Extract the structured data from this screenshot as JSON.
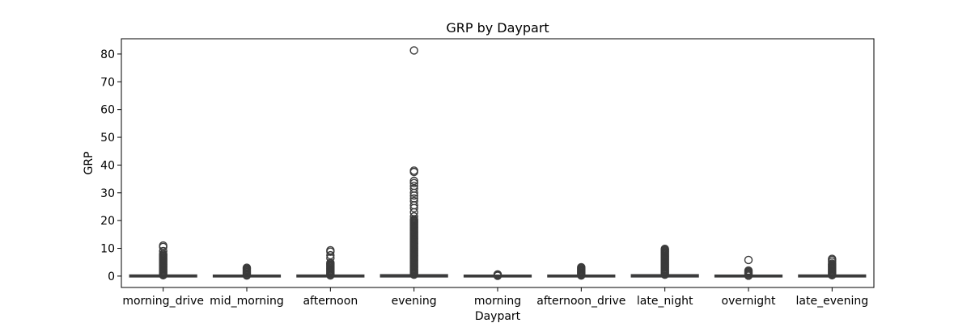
{
  "chart_data": {
    "type": "box",
    "title": "GRP by Daypart",
    "xlabel": "Daypart",
    "ylabel": "GRP",
    "ylim": [
      -4.1,
      85.5
    ],
    "yticks": [
      0,
      10,
      20,
      30,
      40,
      50,
      60,
      70,
      80
    ],
    "grid": false,
    "box_color": "#3b3b3b",
    "categories": [
      "morning_drive",
      "mid_morning",
      "afternoon",
      "evening",
      "morning",
      "afternoon_drive",
      "late_night",
      "overnight",
      "late_evening"
    ],
    "boxes": [
      {
        "category": "morning_drive",
        "whisker_low": 0.0,
        "q1": 0.0,
        "median": 0.05,
        "q3": 0.1,
        "whisker_high": 0.2,
        "outliers": {
          "dense_range": [
            0.3,
            8.0
          ],
          "discrete": [
            9.0,
            10.5,
            11.0
          ]
        }
      },
      {
        "category": "mid_morning",
        "whisker_low": 0.0,
        "q1": 0.0,
        "median": 0.03,
        "q3": 0.06,
        "whisker_high": 0.12,
        "outliers": {
          "dense_range": [
            0.2,
            3.0
          ],
          "discrete": []
        }
      },
      {
        "category": "afternoon",
        "whisker_low": 0.0,
        "q1": 0.0,
        "median": 0.04,
        "q3": 0.08,
        "whisker_high": 0.15,
        "outliers": {
          "dense_range": [
            0.25,
            4.8
          ],
          "discrete": [
            6.5,
            7.5,
            8.8,
            9.3
          ]
        }
      },
      {
        "category": "evening",
        "whisker_low": 0.0,
        "q1": 0.0,
        "median": 0.1,
        "q3": 0.2,
        "whisker_high": 0.4,
        "outliers": {
          "dense_range": [
            0.5,
            20.5
          ],
          "discrete": [
            21.5,
            23,
            24.5,
            25.5,
            27,
            28,
            29,
            30,
            31.5,
            32.5,
            33.5,
            34.3,
            37.5,
            38,
            81.3
          ]
        }
      },
      {
        "category": "morning",
        "whisker_low": 0.0,
        "q1": 0.0,
        "median": 0.02,
        "q3": 0.04,
        "whisker_high": 0.06,
        "outliers": {
          "dense_range": [
            0.1,
            0.6
          ],
          "discrete": []
        }
      },
      {
        "category": "afternoon_drive",
        "whisker_low": 0.0,
        "q1": 0.0,
        "median": 0.03,
        "q3": 0.06,
        "whisker_high": 0.12,
        "outliers": {
          "dense_range": [
            0.2,
            3.2
          ],
          "discrete": []
        }
      },
      {
        "category": "late_night",
        "whisker_low": 0.0,
        "q1": 0.0,
        "median": 0.1,
        "q3": 0.2,
        "whisker_high": 0.4,
        "outliers": {
          "dense_range": [
            0.5,
            9.5
          ],
          "discrete": [
            9.8
          ]
        }
      },
      {
        "category": "overnight",
        "whisker_low": 0.0,
        "q1": 0.0,
        "median": 0.02,
        "q3": 0.05,
        "whisker_high": 0.1,
        "outliers": {
          "dense_range": [
            0.15,
            2.0
          ],
          "discrete": [
            5.8
          ]
        }
      },
      {
        "category": "late_evening",
        "whisker_low": 0.0,
        "q1": 0.0,
        "median": 0.05,
        "q3": 0.1,
        "whisker_high": 0.25,
        "outliers": {
          "dense_range": [
            0.3,
            4.5
          ],
          "discrete": [
            5.2,
            5.8,
            6.2
          ]
        }
      }
    ]
  }
}
